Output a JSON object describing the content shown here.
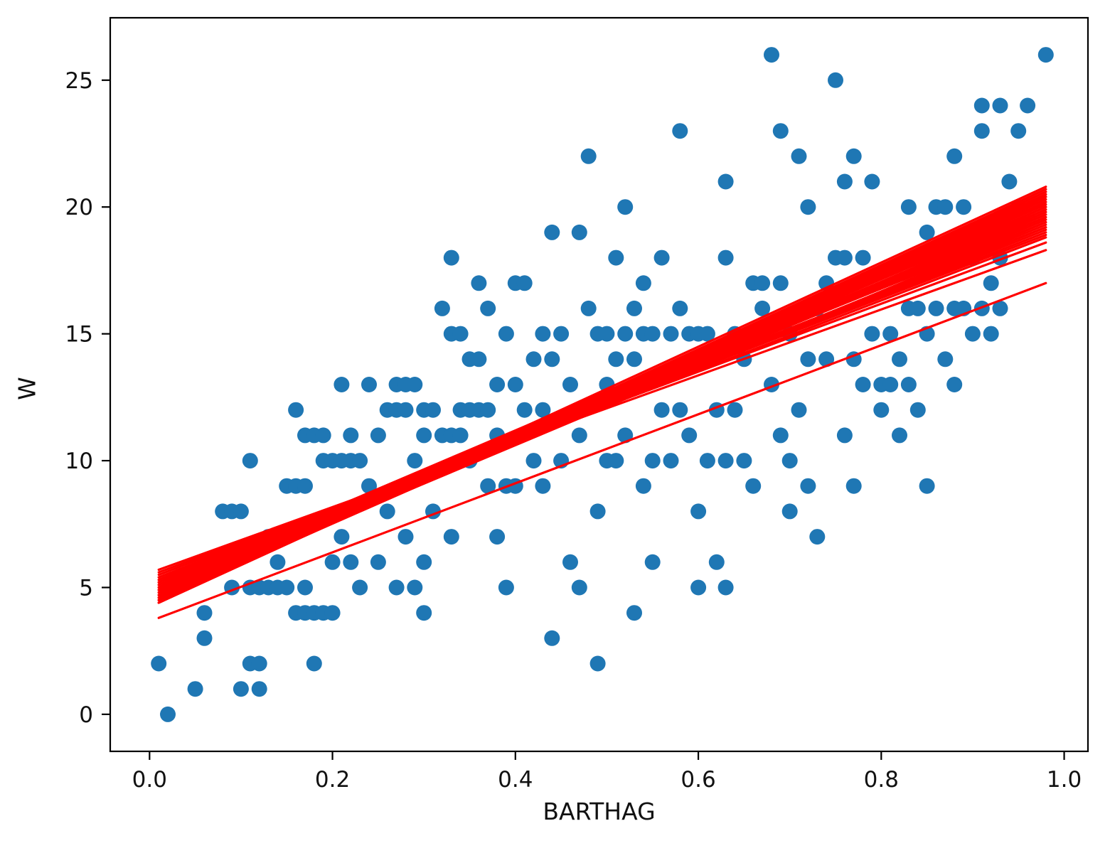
{
  "chart_data": {
    "type": "scatter",
    "title": "",
    "xlabel": "BARTHAG",
    "ylabel": "W",
    "xlim": [
      -0.043,
      1.026
    ],
    "ylim": [
      -1.46,
      27.46
    ],
    "grid": false,
    "legend": "none",
    "point_color": "#1f77b4",
    "line_color": "#ff0000",
    "xticks": [
      0.0,
      0.2,
      0.4,
      0.6,
      0.8,
      1.0
    ],
    "xtick_labels": [
      "0.0",
      "0.2",
      "0.4",
      "0.6",
      "0.8",
      "1.0"
    ],
    "yticks": [
      0,
      5,
      10,
      15,
      20,
      25
    ],
    "ytick_labels": [
      "0",
      "5",
      "10",
      "15",
      "20",
      "25"
    ],
    "points": [
      [
        0.01,
        2
      ],
      [
        0.02,
        0
      ],
      [
        0.05,
        1
      ],
      [
        0.06,
        3
      ],
      [
        0.06,
        4
      ],
      [
        0.08,
        8
      ],
      [
        0.09,
        5
      ],
      [
        0.09,
        8
      ],
      [
        0.1,
        1
      ],
      [
        0.1,
        8
      ],
      [
        0.11,
        2
      ],
      [
        0.11,
        5
      ],
      [
        0.11,
        10
      ],
      [
        0.12,
        1
      ],
      [
        0.12,
        2
      ],
      [
        0.12,
        5
      ],
      [
        0.13,
        5
      ],
      [
        0.13,
        7
      ],
      [
        0.14,
        5
      ],
      [
        0.14,
        6
      ],
      [
        0.15,
        5
      ],
      [
        0.15,
        9
      ],
      [
        0.16,
        4
      ],
      [
        0.16,
        9
      ],
      [
        0.16,
        12
      ],
      [
        0.17,
        4
      ],
      [
        0.17,
        5
      ],
      [
        0.17,
        9
      ],
      [
        0.17,
        11
      ],
      [
        0.18,
        2
      ],
      [
        0.18,
        4
      ],
      [
        0.18,
        11
      ],
      [
        0.19,
        4
      ],
      [
        0.19,
        10
      ],
      [
        0.19,
        11
      ],
      [
        0.2,
        4
      ],
      [
        0.2,
        6
      ],
      [
        0.2,
        10
      ],
      [
        0.21,
        7
      ],
      [
        0.21,
        10
      ],
      [
        0.21,
        13
      ],
      [
        0.22,
        6
      ],
      [
        0.22,
        10
      ],
      [
        0.22,
        11
      ],
      [
        0.23,
        5
      ],
      [
        0.23,
        10
      ],
      [
        0.24,
        9
      ],
      [
        0.24,
        13
      ],
      [
        0.25,
        6
      ],
      [
        0.25,
        11
      ],
      [
        0.26,
        8
      ],
      [
        0.26,
        12
      ],
      [
        0.27,
        5
      ],
      [
        0.27,
        12
      ],
      [
        0.27,
        13
      ],
      [
        0.28,
        7
      ],
      [
        0.28,
        12
      ],
      [
        0.28,
        13
      ],
      [
        0.29,
        5
      ],
      [
        0.29,
        10
      ],
      [
        0.29,
        13
      ],
      [
        0.3,
        4
      ],
      [
        0.3,
        6
      ],
      [
        0.3,
        11
      ],
      [
        0.3,
        12
      ],
      [
        0.31,
        8
      ],
      [
        0.31,
        12
      ],
      [
        0.32,
        11
      ],
      [
        0.32,
        16
      ],
      [
        0.33,
        7
      ],
      [
        0.33,
        11
      ],
      [
        0.33,
        15
      ],
      [
        0.33,
        18
      ],
      [
        0.34,
        11
      ],
      [
        0.34,
        12
      ],
      [
        0.34,
        15
      ],
      [
        0.35,
        10
      ],
      [
        0.35,
        12
      ],
      [
        0.35,
        14
      ],
      [
        0.36,
        12
      ],
      [
        0.36,
        14
      ],
      [
        0.36,
        17
      ],
      [
        0.37,
        9
      ],
      [
        0.37,
        12
      ],
      [
        0.37,
        16
      ],
      [
        0.38,
        7
      ],
      [
        0.38,
        11
      ],
      [
        0.38,
        13
      ],
      [
        0.39,
        5
      ],
      [
        0.39,
        9
      ],
      [
        0.39,
        15
      ],
      [
        0.4,
        9
      ],
      [
        0.4,
        13
      ],
      [
        0.4,
        17
      ],
      [
        0.41,
        12
      ],
      [
        0.41,
        17
      ],
      [
        0.42,
        10
      ],
      [
        0.42,
        14
      ],
      [
        0.43,
        9
      ],
      [
        0.43,
        12
      ],
      [
        0.43,
        15
      ],
      [
        0.44,
        3
      ],
      [
        0.44,
        14
      ],
      [
        0.44,
        19
      ],
      [
        0.45,
        10
      ],
      [
        0.45,
        15
      ],
      [
        0.46,
        6
      ],
      [
        0.46,
        13
      ],
      [
        0.47,
        5
      ],
      [
        0.47,
        11
      ],
      [
        0.47,
        19
      ],
      [
        0.48,
        16
      ],
      [
        0.48,
        22
      ],
      [
        0.49,
        2
      ],
      [
        0.49,
        8
      ],
      [
        0.49,
        15
      ],
      [
        0.5,
        10
      ],
      [
        0.5,
        13
      ],
      [
        0.5,
        15
      ],
      [
        0.51,
        10
      ],
      [
        0.51,
        14
      ],
      [
        0.51,
        18
      ],
      [
        0.52,
        11
      ],
      [
        0.52,
        15
      ],
      [
        0.52,
        20
      ],
      [
        0.53,
        4
      ],
      [
        0.53,
        14
      ],
      [
        0.53,
        16
      ],
      [
        0.54,
        9
      ],
      [
        0.54,
        15
      ],
      [
        0.54,
        17
      ],
      [
        0.55,
        6
      ],
      [
        0.55,
        10
      ],
      [
        0.55,
        15
      ],
      [
        0.56,
        12
      ],
      [
        0.56,
        18
      ],
      [
        0.57,
        10
      ],
      [
        0.57,
        15
      ],
      [
        0.58,
        12
      ],
      [
        0.58,
        16
      ],
      [
        0.58,
        23
      ],
      [
        0.59,
        11
      ],
      [
        0.59,
        15
      ],
      [
        0.6,
        5
      ],
      [
        0.6,
        8
      ],
      [
        0.6,
        15
      ],
      [
        0.61,
        10
      ],
      [
        0.61,
        15
      ],
      [
        0.62,
        6
      ],
      [
        0.62,
        12
      ],
      [
        0.63,
        5
      ],
      [
        0.63,
        10
      ],
      [
        0.63,
        18
      ],
      [
        0.63,
        21
      ],
      [
        0.64,
        12
      ],
      [
        0.64,
        15
      ],
      [
        0.65,
        10
      ],
      [
        0.65,
        14
      ],
      [
        0.66,
        9
      ],
      [
        0.66,
        17
      ],
      [
        0.67,
        16
      ],
      [
        0.67,
        17
      ],
      [
        0.68,
        13
      ],
      [
        0.68,
        26
      ],
      [
        0.69,
        11
      ],
      [
        0.69,
        17
      ],
      [
        0.69,
        23
      ],
      [
        0.7,
        8
      ],
      [
        0.7,
        10
      ],
      [
        0.7,
        15
      ],
      [
        0.71,
        12
      ],
      [
        0.71,
        22
      ],
      [
        0.72,
        9
      ],
      [
        0.72,
        14
      ],
      [
        0.72,
        20
      ],
      [
        0.73,
        7
      ],
      [
        0.73,
        16
      ],
      [
        0.74,
        14
      ],
      [
        0.74,
        17
      ],
      [
        0.75,
        18
      ],
      [
        0.75,
        25
      ],
      [
        0.76,
        11
      ],
      [
        0.76,
        18
      ],
      [
        0.76,
        21
      ],
      [
        0.77,
        9
      ],
      [
        0.77,
        14
      ],
      [
        0.77,
        22
      ],
      [
        0.78,
        13
      ],
      [
        0.78,
        18
      ],
      [
        0.79,
        15
      ],
      [
        0.79,
        21
      ],
      [
        0.8,
        12
      ],
      [
        0.8,
        13
      ],
      [
        0.81,
        13
      ],
      [
        0.81,
        15
      ],
      [
        0.82,
        11
      ],
      [
        0.82,
        14
      ],
      [
        0.83,
        13
      ],
      [
        0.83,
        16
      ],
      [
        0.83,
        20
      ],
      [
        0.84,
        12
      ],
      [
        0.84,
        16
      ],
      [
        0.85,
        9
      ],
      [
        0.85,
        15
      ],
      [
        0.85,
        19
      ],
      [
        0.86,
        16
      ],
      [
        0.86,
        20
      ],
      [
        0.87,
        14
      ],
      [
        0.87,
        20
      ],
      [
        0.88,
        13
      ],
      [
        0.88,
        16
      ],
      [
        0.88,
        22
      ],
      [
        0.89,
        16
      ],
      [
        0.89,
        20
      ],
      [
        0.9,
        15
      ],
      [
        0.9,
        18
      ],
      [
        0.91,
        16
      ],
      [
        0.91,
        23
      ],
      [
        0.91,
        24
      ],
      [
        0.92,
        15
      ],
      [
        0.92,
        17
      ],
      [
        0.93,
        16
      ],
      [
        0.93,
        18
      ],
      [
        0.93,
        24
      ],
      [
        0.94,
        21
      ],
      [
        0.95,
        20
      ],
      [
        0.95,
        23
      ],
      [
        0.96,
        24
      ],
      [
        0.98,
        26
      ]
    ],
    "regression_lines": {
      "x_start": 0.01,
      "x_end": 0.98,
      "endpoints": [
        [
          4.5,
          20.5
        ],
        [
          4.7,
          20.2
        ],
        [
          4.4,
          20.7
        ],
        [
          5.0,
          19.8
        ],
        [
          5.2,
          19.5
        ],
        [
          4.8,
          20.4
        ],
        [
          4.6,
          20.6
        ],
        [
          5.1,
          19.9
        ],
        [
          4.9,
          20.1
        ],
        [
          5.3,
          19.4
        ],
        [
          4.5,
          20.3
        ],
        [
          4.7,
          20.8
        ],
        [
          5.4,
          19.2
        ],
        [
          4.4,
          20.5
        ],
        [
          5.0,
          20.0
        ],
        [
          4.8,
          19.7
        ],
        [
          5.2,
          19.6
        ],
        [
          4.6,
          20.2
        ],
        [
          5.5,
          18.9
        ],
        [
          4.9,
          20.4
        ],
        [
          5.1,
          19.3
        ],
        [
          4.5,
          20.6
        ],
        [
          5.0,
          19.5
        ],
        [
          4.7,
          20.0
        ],
        [
          5.3,
          19.0
        ],
        [
          4.8,
          20.5
        ],
        [
          4.6,
          19.8
        ],
        [
          5.2,
          20.1
        ],
        [
          4.9,
          19.6
        ],
        [
          5.6,
          18.6
        ],
        [
          4.4,
          20.4
        ],
        [
          5.0,
          20.3
        ],
        [
          4.7,
          19.4
        ],
        [
          5.1,
          20.0
        ],
        [
          4.5,
          19.9
        ],
        [
          5.4,
          18.8
        ],
        [
          4.8,
          20.2
        ],
        [
          5.7,
          18.3
        ],
        [
          4.6,
          20.7
        ],
        [
          5.2,
          19.1
        ],
        [
          4.9,
          20.0
        ],
        [
          5.0,
          19.2
        ],
        [
          4.6,
          20.4
        ],
        [
          5.3,
          19.7
        ],
        [
          3.8,
          17.0
        ]
      ]
    }
  }
}
